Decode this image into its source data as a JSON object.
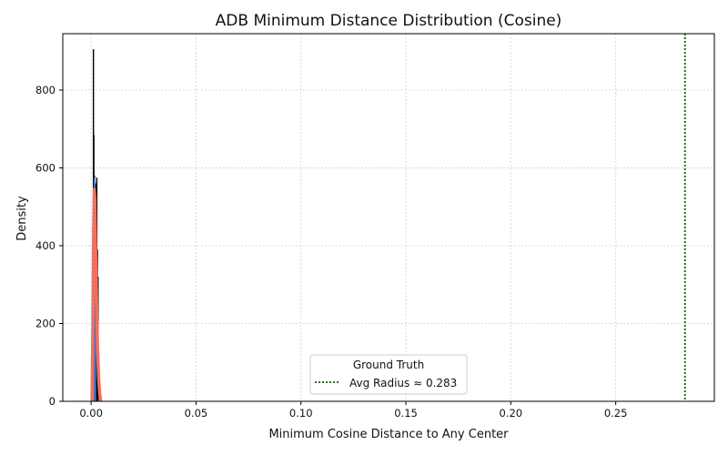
{
  "chart_data": {
    "type": "histogram",
    "title": "ADB Minimum Distance Distribution (Cosine)",
    "xlabel": "Minimum Cosine Distance to Any Center",
    "ylabel": "Density",
    "xlim": [
      -0.0135,
      0.297
    ],
    "ylim": [
      0,
      945
    ],
    "xticks": [
      0.0,
      0.05,
      0.1,
      0.15,
      0.2,
      0.25
    ],
    "xtick_labels": [
      "0.00",
      "0.05",
      "0.10",
      "0.15",
      "0.20",
      "0.25"
    ],
    "yticks": [
      0,
      200,
      400,
      600,
      800
    ],
    "ytick_labels": [
      "0",
      "200",
      "400",
      "600",
      "800"
    ],
    "grid": true,
    "series": [
      {
        "kind": "bars",
        "color": "#000000",
        "x": [
          0.0007,
          0.0011,
          0.0013,
          0.0016,
          0.0019,
          0.0021,
          0.0024,
          0.0027,
          0.003,
          0.0033
        ],
        "values": [
          100,
          905,
          685,
          580,
          560,
          250,
          560,
          575,
          390,
          320
        ]
      },
      {
        "kind": "bars",
        "color": "#4a70c2",
        "x": [
          0.0012,
          0.0015,
          0.0018,
          0.0021
        ],
        "values": [
          480,
          575,
          560,
          320
        ]
      },
      {
        "kind": "line",
        "color": "#f07060",
        "x": [
          0.0004,
          0.0008,
          0.0012,
          0.0015,
          0.0018,
          0.0021,
          0.0024,
          0.0027,
          0.0031,
          0.0036,
          0.0041,
          0.0046
        ],
        "values": [
          0,
          180,
          440,
          545,
          520,
          400,
          330,
          220,
          130,
          60,
          20,
          0
        ]
      }
    ],
    "reference_line": {
      "x": 0.283,
      "color": "#006400",
      "label": "Avg Radius ≈ 0.283"
    },
    "legend": {
      "title": "Ground Truth",
      "position": "lower center",
      "entries": [
        "Avg Radius ≈ 0.283"
      ]
    }
  }
}
